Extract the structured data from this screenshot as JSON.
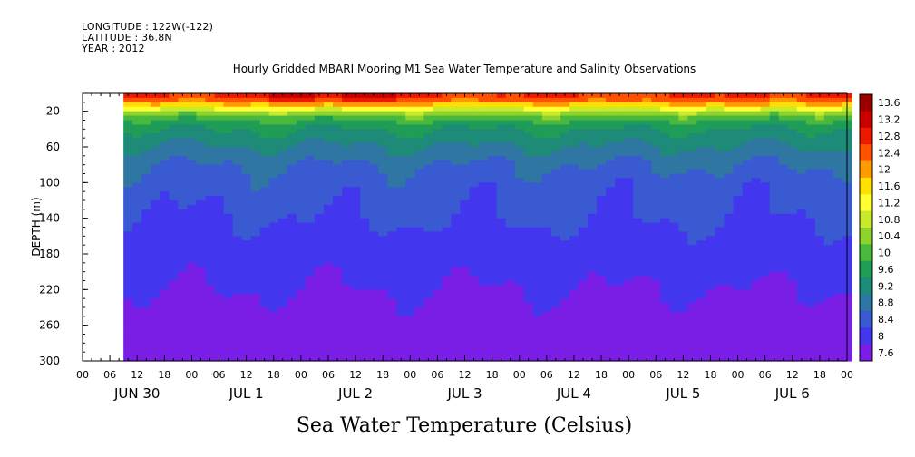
{
  "header": {
    "longitude": "LONGITUDE : 122W(-122)",
    "latitude": "LATITUDE : 36.8N",
    "year": "YEAR : 2012"
  },
  "chart_data": {
    "type": "heatmap",
    "title": "Hourly Gridded MBARI Mooring M1 Sea Water Temperature and Salinity Observations",
    "xlabel_caption": "Sea Water Temperature (Celsius)",
    "ylabel": "DEPTH (m)",
    "ylim": [
      300,
      0
    ],
    "y_ticks": [
      20,
      60,
      100,
      140,
      180,
      220,
      260,
      300
    ],
    "x_hour_ticks": [
      "00",
      "06",
      "12",
      "18",
      "00",
      "06",
      "12",
      "18",
      "00",
      "06",
      "12",
      "18",
      "00",
      "06",
      "12",
      "18",
      "00",
      "06",
      "12",
      "18",
      "00",
      "06",
      "12",
      "18",
      "00",
      "06",
      "12",
      "18",
      "00"
    ],
    "x_day_labels": [
      "JUN 30",
      "JUL 1",
      "JUL 2",
      "JUL 3",
      "JUL 4",
      "JUL 5",
      "JUL 6"
    ],
    "x_range_hours": [
      0,
      168
    ],
    "data_start_hour": 9,
    "colorbar": {
      "labels": [
        "13.6",
        "13.2",
        "12.8",
        "12.4",
        "12",
        "11.6",
        "11.2",
        "10.8",
        "10.4",
        "10",
        "9.6",
        "9.2",
        "8.8",
        "8.4",
        "8",
        "7.6"
      ],
      "colors": [
        "#9a0000",
        "#c80000",
        "#ee1a00",
        "#ff5200",
        "#ff9a00",
        "#ffe000",
        "#ffff33",
        "#c8ea2a",
        "#8ed22b",
        "#4ab83c",
        "#1f9c56",
        "#1e8a78",
        "#2f76a2",
        "#3a5ad2",
        "#4236ee",
        "#7a1ee6"
      ]
    },
    "approx_profile": {
      "depths_m": [
        5,
        12,
        20,
        30,
        40,
        60,
        80,
        100,
        140,
        180,
        220,
        260,
        300
      ],
      "temperature_c": [
        12.8,
        12.0,
        10.8,
        10.0,
        9.6,
        9.2,
        8.8,
        8.6,
        8.4,
        8.2,
        8.0,
        7.8,
        7.6
      ]
    }
  }
}
